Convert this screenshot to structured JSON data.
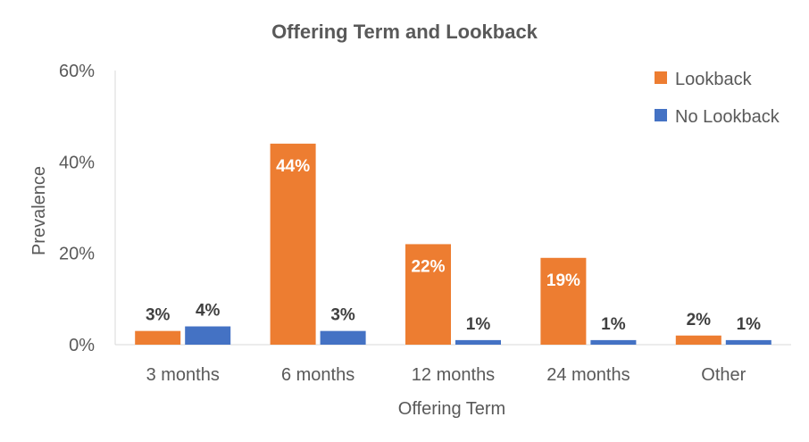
{
  "chart_data": {
    "type": "bar",
    "title": "Offering Term and Lookback",
    "xlabel": "Offering Term",
    "ylabel": "Prevalence",
    "categories": [
      "3 months",
      "6 months",
      "12 months",
      "24 months",
      "Other"
    ],
    "ylim": [
      0,
      60
    ],
    "y_ticks": [
      "0%",
      "20%",
      "40%",
      "60%"
    ],
    "grid": false,
    "legend_position": "top-right",
    "series": [
      {
        "name": "Lookback",
        "color": "#ED7D31",
        "values": [
          3,
          44,
          22,
          19,
          2
        ],
        "labels": [
          "3%",
          "44%",
          "22%",
          "19%",
          "2%"
        ]
      },
      {
        "name": "No Lookback",
        "color": "#4472C4",
        "values": [
          4,
          3,
          1,
          1,
          1
        ],
        "labels": [
          "4%",
          "3%",
          "1%",
          "1%",
          "1%"
        ]
      }
    ]
  }
}
